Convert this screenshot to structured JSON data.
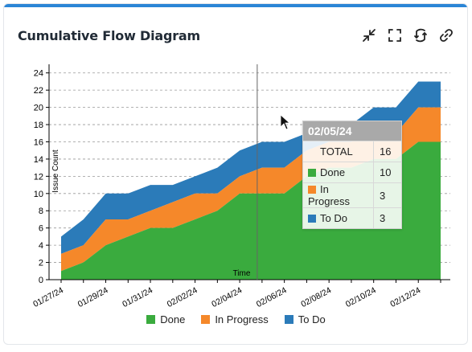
{
  "card": {
    "title": "Cumulative Flow Diagram",
    "tools": [
      {
        "icon": "collapse-icon"
      },
      {
        "icon": "fullscreen-icon"
      },
      {
        "icon": "refresh-icon"
      },
      {
        "icon": "link-icon"
      }
    ]
  },
  "colors": {
    "Done": "#3aab3e",
    "In Progress": "#f5882a",
    "To Do": "#2b7bb9",
    "accent": "#2b85d6"
  },
  "chart_data": {
    "type": "area",
    "stacked": true,
    "xlabel": "Time",
    "ylabel": "Issue Count",
    "ylim": [
      0,
      25
    ],
    "yticks": [
      0,
      2,
      4,
      6,
      8,
      10,
      12,
      14,
      16,
      18,
      20,
      22,
      24
    ],
    "grid": true,
    "legend_position": "bottom",
    "x": [
      "01/27/24",
      "01/28/24",
      "01/29/24",
      "01/30/24",
      "01/31/24",
      "02/01/24",
      "02/02/24",
      "02/03/24",
      "02/04/24",
      "02/05/24",
      "02/06/24",
      "02/07/24",
      "02/08/24",
      "02/09/24",
      "02/10/24",
      "02/11/24",
      "02/12/24",
      "02/13/24"
    ],
    "xtick_labels": [
      "01/27/24",
      "01/29/24",
      "01/31/24",
      "02/02/24",
      "02/04/24",
      "02/06/24",
      "02/08/24",
      "02/10/24",
      "02/12/24"
    ],
    "series": [
      {
        "name": "Done",
        "values": [
          1,
          2,
          4,
          5,
          6,
          6,
          7,
          8,
          10,
          10,
          10,
          12,
          13,
          13,
          14,
          14,
          16,
          16
        ]
      },
      {
        "name": "In Progress",
        "values": [
          2,
          2,
          3,
          2,
          2,
          3,
          3,
          2,
          2,
          3,
          3,
          3,
          3,
          3,
          3,
          3,
          4,
          4
        ]
      },
      {
        "name": "To Do",
        "values": [
          2,
          3,
          3,
          3,
          3,
          2,
          2,
          3,
          3,
          3,
          3,
          2,
          2,
          2,
          3,
          3,
          3,
          3
        ]
      }
    ],
    "hover": {
      "date": "02/05/24",
      "x_index": 9,
      "rows": [
        {
          "label": "TOTAL",
          "value": "16"
        },
        {
          "label": "Done",
          "value": "10"
        },
        {
          "label": "In Progress",
          "value": "3"
        },
        {
          "label": "To Do",
          "value": "3"
        }
      ]
    }
  },
  "legend": [
    "Done",
    "In Progress",
    "To Do"
  ]
}
